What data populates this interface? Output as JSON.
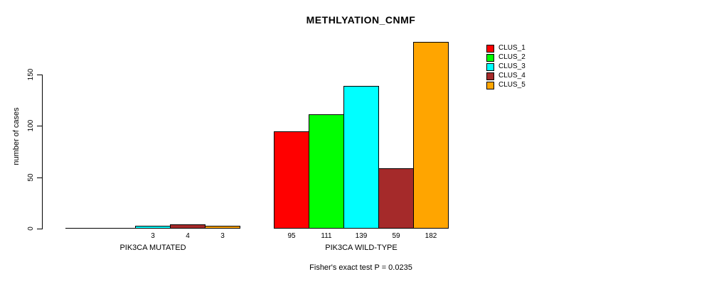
{
  "chart_data": {
    "type": "bar",
    "title": "METHLYATION_CNMF",
    "ylabel": "number of cases",
    "xlabel": "",
    "ylim": [
      0,
      185
    ],
    "yticks": [
      0,
      50,
      100,
      150
    ],
    "grid": false,
    "legend_position": "top-right-outside",
    "categories": [
      "PIK3CA MUTATED",
      "PIK3CA WILD-TYPE"
    ],
    "series": [
      {
        "name": "CLUS_1",
        "color": "#ff0000",
        "values": [
          0,
          95
        ]
      },
      {
        "name": "CLUS_2",
        "color": "#00ff00",
        "values": [
          0,
          111
        ]
      },
      {
        "name": "CLUS_3",
        "color": "#00ffff",
        "values": [
          3,
          139
        ]
      },
      {
        "name": "CLUS_4",
        "color": "#a52a2a",
        "values": [
          4,
          59
        ]
      },
      {
        "name": "CLUS_5",
        "color": "#ffa500",
        "values": [
          3,
          182
        ]
      }
    ],
    "bar_value_labels_shown_when": "value > 0",
    "annotation": "Fisher's exact test P = 0.0235",
    "axis_color": "#000000",
    "background_color": "#ffffff"
  }
}
